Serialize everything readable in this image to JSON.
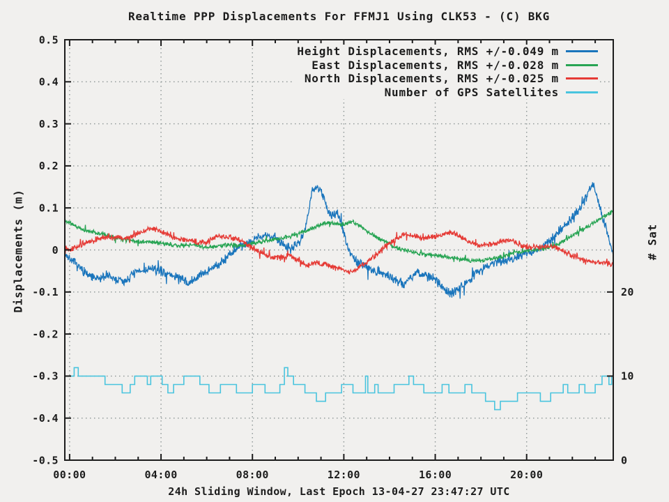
{
  "window": {
    "background": "#f1f0ee",
    "foreground": "#1c1c1c",
    "grid_color": "#8c9494"
  },
  "chart_data": {
    "type": "line",
    "title": "Realtime PPP Displacements For FFMJ1 Using CLK53 - (C) BKG",
    "xlabel": "24h Sliding Window, Last Epoch 13-04-27 23:47:27 UTC",
    "grid": true,
    "legend_position": "top-right-inside",
    "x_unit": "time of day (UTC), 24h sliding window",
    "x_range": [
      -0.21,
      23.79
    ],
    "x_ticks": [
      {
        "label": "00:00",
        "value": 0
      },
      {
        "label": "04:00",
        "value": 4
      },
      {
        "label": "08:00",
        "value": 8
      },
      {
        "label": "12:00",
        "value": 12
      },
      {
        "label": "16:00",
        "value": 16
      },
      {
        "label": "20:00",
        "value": 20
      }
    ],
    "x_minor_step": 1,
    "y_left": {
      "label": "Displacements (m)",
      "range": [
        -0.5,
        0.5
      ],
      "ticks": [
        {
          "label": "0.5",
          "value": 0.5
        },
        {
          "label": "0.4",
          "value": 0.4
        },
        {
          "label": "0.3",
          "value": 0.3
        },
        {
          "label": "0.2",
          "value": 0.2
        },
        {
          "label": "0.1",
          "value": 0.1
        },
        {
          "label": "0",
          "value": 0
        },
        {
          "label": "-0.1",
          "value": -0.1
        },
        {
          "label": "-0.2",
          "value": -0.2
        },
        {
          "label": "-0.3",
          "value": -0.3
        },
        {
          "label": "-0.4",
          "value": -0.4
        },
        {
          "label": "-0.5",
          "value": -0.5
        }
      ]
    },
    "y_right": {
      "label": "# Sat",
      "range": [
        0,
        50
      ],
      "ticks": [
        {
          "label": "20",
          "value": 20
        },
        {
          "label": "10",
          "value": 10
        },
        {
          "label": "0",
          "value": 0
        }
      ]
    },
    "series": [
      {
        "id": "height",
        "name": "Height Displacements, RMS +/-0.049 m",
        "axis": "left",
        "color": "#1a75bc",
        "style": "noisy-line",
        "noise": 0.013,
        "points": [
          [
            -0.21,
            -0.01
          ],
          [
            0,
            -0.02
          ],
          [
            0.4,
            -0.04
          ],
          [
            0.8,
            -0.06
          ],
          [
            1.2,
            -0.07
          ],
          [
            1.6,
            -0.06
          ],
          [
            2,
            -0.07
          ],
          [
            2.4,
            -0.075
          ],
          [
            2.8,
            -0.055
          ],
          [
            3.2,
            -0.05
          ],
          [
            3.6,
            -0.045
          ],
          [
            4,
            -0.05
          ],
          [
            4.4,
            -0.06
          ],
          [
            4.8,
            -0.065
          ],
          [
            5.2,
            -0.08
          ],
          [
            5.6,
            -0.065
          ],
          [
            6,
            -0.05
          ],
          [
            6.5,
            -0.035
          ],
          [
            7,
            -0.01
          ],
          [
            7.4,
            0.005
          ],
          [
            7.8,
            0.015
          ],
          [
            8.2,
            0.03
          ],
          [
            8.6,
            0.035
          ],
          [
            9,
            0.03
          ],
          [
            9.3,
            0.015
          ],
          [
            9.6,
            0.005
          ],
          [
            9.9,
            0.01
          ],
          [
            10.2,
            0.03
          ],
          [
            10.45,
            0.09
          ],
          [
            10.6,
            0.14
          ],
          [
            10.8,
            0.15
          ],
          [
            11,
            0.145
          ],
          [
            11.15,
            0.12
          ],
          [
            11.3,
            0.09
          ],
          [
            11.5,
            0.08
          ],
          [
            11.7,
            0.09
          ],
          [
            11.9,
            0.06
          ],
          [
            12.1,
            0.02
          ],
          [
            12.3,
            -0.01
          ],
          [
            12.6,
            -0.03
          ],
          [
            13,
            -0.04
          ],
          [
            13.4,
            -0.05
          ],
          [
            13.8,
            -0.055
          ],
          [
            14.2,
            -0.07
          ],
          [
            14.6,
            -0.08
          ],
          [
            14.9,
            -0.065
          ],
          [
            15.2,
            -0.055
          ],
          [
            15.6,
            -0.06
          ],
          [
            16,
            -0.07
          ],
          [
            16.4,
            -0.095
          ],
          [
            16.7,
            -0.105
          ],
          [
            17,
            -0.09
          ],
          [
            17.4,
            -0.075
          ],
          [
            17.8,
            -0.055
          ],
          [
            18.2,
            -0.04
          ],
          [
            18.6,
            -0.03
          ],
          [
            19,
            -0.025
          ],
          [
            19.4,
            -0.02
          ],
          [
            19.8,
            -0.01
          ],
          [
            20.2,
            -0.005
          ],
          [
            20.6,
            0.005
          ],
          [
            21,
            0.02
          ],
          [
            21.4,
            0.045
          ],
          [
            21.8,
            0.065
          ],
          [
            22.2,
            0.09
          ],
          [
            22.5,
            0.115
          ],
          [
            22.75,
            0.145
          ],
          [
            22.9,
            0.16
          ],
          [
            23.05,
            0.13
          ],
          [
            23.2,
            0.1
          ],
          [
            23.35,
            0.075
          ],
          [
            23.5,
            0.05
          ],
          [
            23.65,
            0.02
          ],
          [
            23.79,
            -0.01
          ]
        ]
      },
      {
        "id": "east",
        "name": "East Displacements, RMS +/-0.028 m",
        "axis": "left",
        "color": "#27a453",
        "style": "noisy-line",
        "noise": 0.006,
        "points": [
          [
            -0.21,
            0.07
          ],
          [
            0,
            0.065
          ],
          [
            0.4,
            0.052
          ],
          [
            0.8,
            0.045
          ],
          [
            1.2,
            0.04
          ],
          [
            1.6,
            0.035
          ],
          [
            2,
            0.03
          ],
          [
            2.5,
            0.025
          ],
          [
            3,
            0.02
          ],
          [
            3.5,
            0.02
          ],
          [
            4,
            0.015
          ],
          [
            4.5,
            0.012
          ],
          [
            5,
            0.01
          ],
          [
            5.5,
            0.012
          ],
          [
            6,
            0.005
          ],
          [
            6.5,
            0.01
          ],
          [
            7,
            0.012
          ],
          [
            7.5,
            0.01
          ],
          [
            8,
            0.015
          ],
          [
            8.5,
            0.02
          ],
          [
            9,
            0.025
          ],
          [
            9.5,
            0.03
          ],
          [
            10,
            0.038
          ],
          [
            10.5,
            0.05
          ],
          [
            11,
            0.06
          ],
          [
            11.4,
            0.066
          ],
          [
            11.8,
            0.06
          ],
          [
            12.1,
            0.062
          ],
          [
            12.4,
            0.067
          ],
          [
            12.7,
            0.058
          ],
          [
            13,
            0.045
          ],
          [
            13.4,
            0.032
          ],
          [
            13.8,
            0.02
          ],
          [
            14.2,
            0.008
          ],
          [
            14.6,
            0
          ],
          [
            15,
            -0.005
          ],
          [
            15.5,
            -0.01
          ],
          [
            16,
            -0.012
          ],
          [
            16.5,
            -0.016
          ],
          [
            17,
            -0.02
          ],
          [
            17.5,
            -0.025
          ],
          [
            18,
            -0.026
          ],
          [
            18.5,
            -0.02
          ],
          [
            19,
            -0.015
          ],
          [
            19.5,
            -0.006
          ],
          [
            20,
            -0.002
          ],
          [
            20.5,
            0
          ],
          [
            21,
            0.006
          ],
          [
            21.5,
            0.018
          ],
          [
            22,
            0.034
          ],
          [
            22.5,
            0.05
          ],
          [
            23,
            0.066
          ],
          [
            23.4,
            0.08
          ],
          [
            23.79,
            0.092
          ]
        ]
      },
      {
        "id": "north",
        "name": "North Displacements, RMS +/-0.025 m",
        "axis": "left",
        "color": "#e53a35",
        "style": "noisy-line",
        "noise": 0.008,
        "points": [
          [
            -0.21,
            0.008
          ],
          [
            0,
            0
          ],
          [
            0.5,
            0.012
          ],
          [
            1,
            0.022
          ],
          [
            1.5,
            0.03
          ],
          [
            2,
            0.03
          ],
          [
            2.5,
            0.028
          ],
          [
            3,
            0.04
          ],
          [
            3.5,
            0.05
          ],
          [
            4,
            0.045
          ],
          [
            4.5,
            0.03
          ],
          [
            5,
            0.025
          ],
          [
            5.5,
            0.02
          ],
          [
            6,
            0.018
          ],
          [
            6.5,
            0.035
          ],
          [
            7,
            0.03
          ],
          [
            7.5,
            0.022
          ],
          [
            8,
            0.005
          ],
          [
            8.4,
            -0.008
          ],
          [
            8.8,
            -0.015
          ],
          [
            9.2,
            -0.018
          ],
          [
            9.6,
            -0.012
          ],
          [
            10,
            -0.025
          ],
          [
            10.4,
            -0.038
          ],
          [
            10.8,
            -0.03
          ],
          [
            11.2,
            -0.035
          ],
          [
            11.6,
            -0.042
          ],
          [
            12,
            -0.048
          ],
          [
            12.3,
            -0.052
          ],
          [
            12.6,
            -0.045
          ],
          [
            13,
            -0.028
          ],
          [
            13.4,
            -0.012
          ],
          [
            13.8,
            0.008
          ],
          [
            14.2,
            0.025
          ],
          [
            14.6,
            0.035
          ],
          [
            15,
            0.035
          ],
          [
            15.4,
            0.028
          ],
          [
            15.8,
            0.03
          ],
          [
            16.2,
            0.035
          ],
          [
            16.6,
            0.042
          ],
          [
            17,
            0.035
          ],
          [
            17.4,
            0.022
          ],
          [
            17.8,
            0.012
          ],
          [
            18.2,
            0.012
          ],
          [
            18.6,
            0.016
          ],
          [
            19,
            0.022
          ],
          [
            19.4,
            0.022
          ],
          [
            19.8,
            0.01
          ],
          [
            20.2,
            0.004
          ],
          [
            20.6,
            0.006
          ],
          [
            21,
            0.012
          ],
          [
            21.4,
            0.002
          ],
          [
            21.8,
            -0.008
          ],
          [
            22.2,
            -0.018
          ],
          [
            22.6,
            -0.026
          ],
          [
            23,
            -0.03
          ],
          [
            23.4,
            -0.03
          ],
          [
            23.79,
            -0.035
          ]
        ]
      },
      {
        "id": "satellites",
        "name": "Number of GPS Satellites",
        "axis": "right",
        "color": "#49c4de",
        "style": "steps",
        "points": [
          [
            -0.21,
            10
          ],
          [
            0.2,
            11
          ],
          [
            0.38,
            10
          ],
          [
            1.55,
            9
          ],
          [
            2.3,
            8
          ],
          [
            2.65,
            9
          ],
          [
            2.85,
            10
          ],
          [
            3.4,
            9
          ],
          [
            3.55,
            10
          ],
          [
            4.05,
            9
          ],
          [
            4.3,
            8
          ],
          [
            4.55,
            9
          ],
          [
            5,
            10
          ],
          [
            5.7,
            9
          ],
          [
            6.1,
            8
          ],
          [
            6.6,
            9
          ],
          [
            7.3,
            8
          ],
          [
            8,
            9
          ],
          [
            8.55,
            8
          ],
          [
            9.2,
            9
          ],
          [
            9.4,
            11
          ],
          [
            9.55,
            10
          ],
          [
            9.8,
            9
          ],
          [
            10.3,
            8
          ],
          [
            10.8,
            7
          ],
          [
            11.2,
            8
          ],
          [
            11.9,
            9
          ],
          [
            12.4,
            8
          ],
          [
            12.95,
            10
          ],
          [
            13.05,
            8
          ],
          [
            13.35,
            9
          ],
          [
            13.5,
            8
          ],
          [
            14.2,
            9
          ],
          [
            14.85,
            10
          ],
          [
            15.05,
            9
          ],
          [
            15.5,
            8
          ],
          [
            16.3,
            9
          ],
          [
            16.6,
            8
          ],
          [
            17.3,
            9
          ],
          [
            17.6,
            8
          ],
          [
            18.2,
            7
          ],
          [
            18.6,
            6
          ],
          [
            18.85,
            7
          ],
          [
            19.6,
            8
          ],
          [
            20.6,
            7
          ],
          [
            21.05,
            8
          ],
          [
            21.6,
            9
          ],
          [
            21.8,
            8
          ],
          [
            22.3,
            9
          ],
          [
            22.55,
            8
          ],
          [
            23,
            9
          ],
          [
            23.3,
            10
          ],
          [
            23.6,
            9
          ],
          [
            23.72,
            10
          ]
        ]
      }
    ]
  }
}
